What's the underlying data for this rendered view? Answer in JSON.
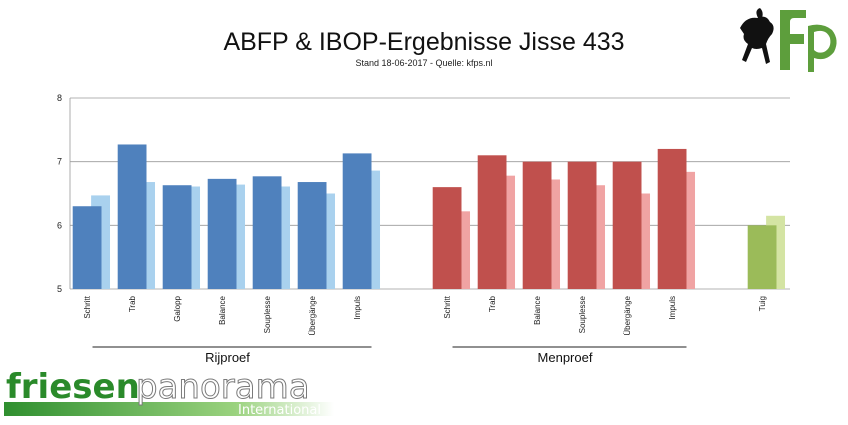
{
  "chart_data": {
    "type": "bar",
    "title": "ABFP & IBOP-Ergebnisse Jisse 433",
    "subtitle": "Stand 18-06-2017 - Quelle: kfps.nl",
    "ylim": [
      5,
      8
    ],
    "yticks": [
      "5",
      "6",
      "7",
      "8"
    ],
    "grid": true,
    "groups": [
      {
        "label": "Rijproef",
        "color": "#4f81bd",
        "light_color": "#a9d1ee",
        "categories": [
          "Schritt",
          "Trab",
          "Galopp",
          "Balance",
          "Souplesse",
          "Übergänge",
          "Impuls"
        ],
        "values": [
          6.3,
          7.27,
          6.63,
          6.73,
          6.77,
          6.68,
          7.13
        ],
        "comparison": [
          6.47,
          6.68,
          6.61,
          6.64,
          6.61,
          6.5,
          6.86
        ]
      },
      {
        "label": "Menproef",
        "color": "#c0504d",
        "light_color": "#f0a3a3",
        "categories": [
          "Schritt",
          "Trab",
          "Balance",
          "Souplesse",
          "Übergänge",
          "Impuls"
        ],
        "values": [
          6.6,
          7.1,
          7.0,
          7.0,
          7.0,
          7.2
        ],
        "comparison": [
          6.22,
          6.78,
          6.72,
          6.63,
          6.5,
          6.84
        ]
      },
      {
        "label": "",
        "color": "#9bbb59",
        "light_color": "#d4e4a3",
        "categories": [
          "Tuig"
        ],
        "values": [
          6.0
        ],
        "comparison": [
          6.15
        ]
      }
    ]
  },
  "logos": {
    "corner": "fp",
    "brand_main": "friesen",
    "brand_outline": "panorama",
    "brand_sub": "International"
  }
}
